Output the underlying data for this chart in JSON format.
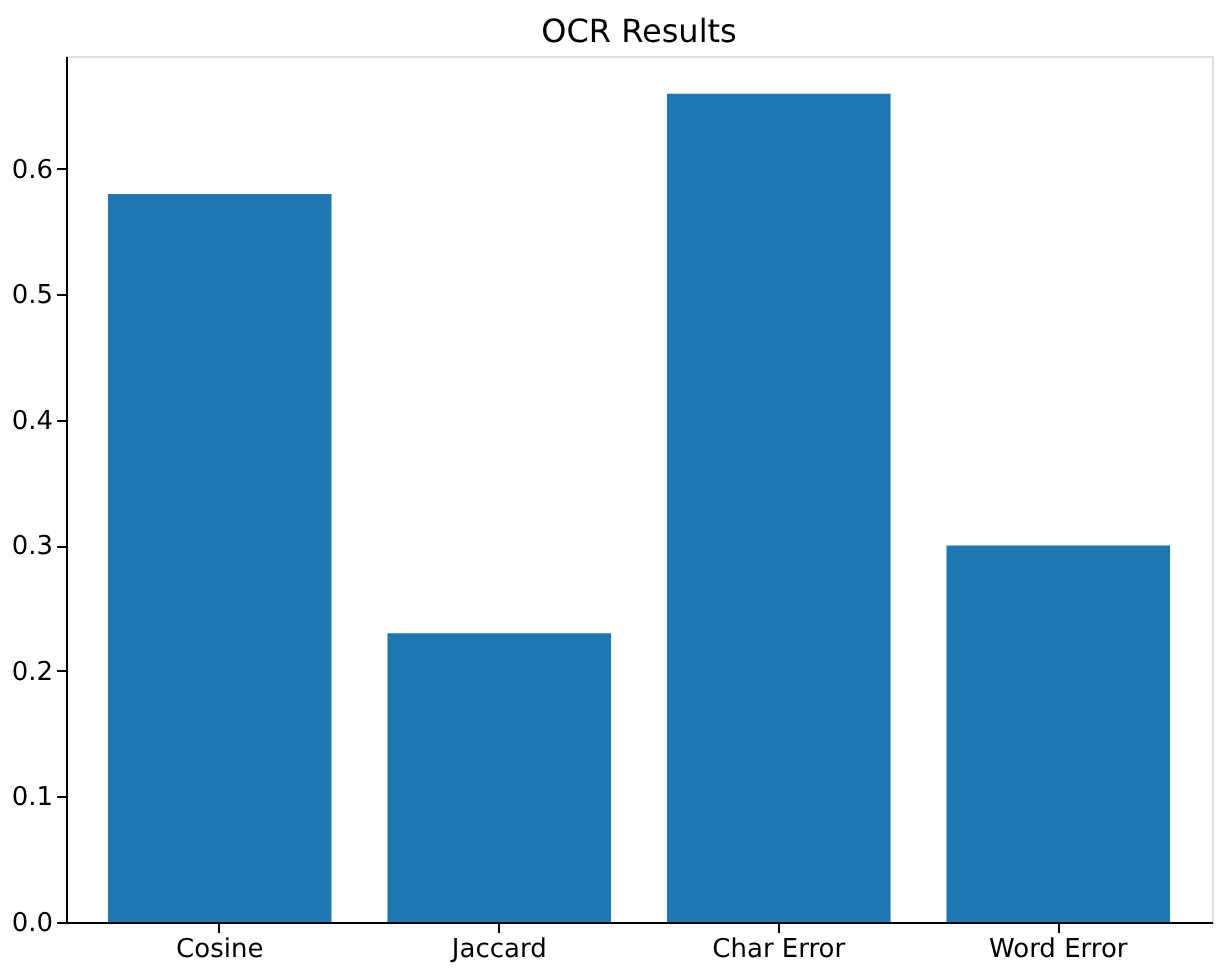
{
  "chart_data": {
    "type": "bar",
    "title": "OCR Results",
    "categories": [
      "Cosine",
      "Jaccard",
      "Char Error",
      "Word Error"
    ],
    "values": [
      0.58,
      0.23,
      0.66,
      0.3
    ],
    "color": "#1f77b4",
    "ylim": [
      0,
      0.69
    ],
    "yticks": [
      {
        "value": 0,
        "label": "0.0"
      },
      0.1,
      0.2,
      0.3,
      0.4,
      0.5,
      0.6
    ],
    "grid": false
  }
}
